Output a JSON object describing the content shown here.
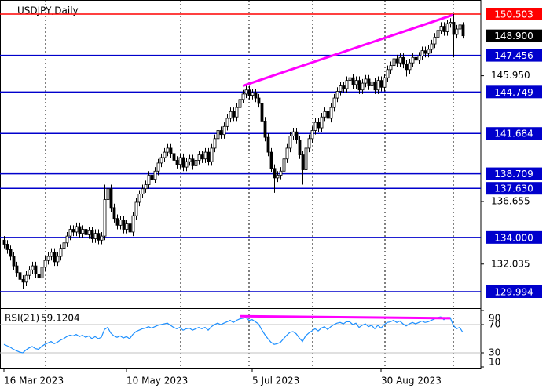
{
  "chart_data": {
    "type": "candlestick",
    "title": "USDJPY,Daily",
    "categories": [
      "16 Mar 2023",
      null,
      null,
      null,
      null,
      null,
      null,
      null,
      null,
      null,
      null,
      null,
      null,
      null,
      null,
      null,
      null,
      null,
      null,
      null,
      null,
      null,
      null,
      null,
      null,
      null,
      null,
      null,
      null,
      null,
      null,
      null,
      null,
      null,
      null,
      null,
      null,
      null,
      null,
      "10 May 2023",
      null,
      null,
      null,
      null,
      null,
      null,
      null,
      null,
      null,
      null,
      null,
      null,
      null,
      null,
      null,
      null,
      null,
      null,
      null,
      null,
      null,
      null,
      null,
      null,
      null,
      null,
      null,
      null,
      null,
      null,
      null,
      null,
      null,
      null,
      null,
      null,
      null,
      null,
      null,
      "5 Jul 2023",
      null,
      null,
      null,
      null,
      null,
      null,
      null,
      null,
      null,
      null,
      null,
      null,
      null,
      null,
      null,
      null,
      null,
      null,
      null,
      null,
      null,
      null,
      null,
      null,
      null,
      null,
      null,
      null,
      null,
      null,
      null,
      null,
      null,
      null,
      null,
      null,
      null,
      null,
      null,
      null,
      "30 Aug 2023",
      null,
      null,
      null,
      null,
      null,
      null,
      null,
      null,
      null,
      null,
      null,
      null,
      null,
      null,
      null,
      null,
      null,
      null,
      null,
      null,
      null,
      null,
      null,
      null,
      null,
      null
    ],
    "open": [
      133.8,
      133.5,
      133.1,
      132.6,
      131.9,
      131.4,
      130.9,
      130.7,
      131.2,
      131.6,
      131.9,
      131.3,
      131.0,
      131.8,
      132.3,
      132.6,
      132.9,
      132.2,
      132.6,
      133.2,
      133.6,
      134.1,
      134.6,
      134.4,
      134.8,
      134.3,
      134.6,
      134.2,
      134.5,
      133.9,
      134.3,
      133.8,
      134.1,
      136.8,
      137.6,
      136.2,
      135.4,
      134.9,
      135.3,
      134.6,
      135.0,
      134.4,
      135.6,
      136.6,
      137.2,
      137.6,
      137.9,
      138.6,
      138.3,
      138.9,
      139.5,
      139.9,
      140.3,
      140.6,
      140.2,
      139.7,
      139.4,
      139.9,
      139.2,
      139.6,
      139.8,
      139.3,
      139.7,
      140.1,
      139.8,
      140.3,
      139.6,
      140.6,
      141.3,
      141.9,
      141.6,
      142.2,
      142.8,
      143.3,
      142.9,
      143.6,
      144.2,
      144.6,
      144.9,
      144.5,
      144.7,
      144.3,
      143.9,
      142.6,
      141.4,
      140.3,
      139.1,
      138.4,
      138.6,
      138.9,
      139.8,
      140.6,
      141.5,
      141.8,
      141.2,
      140.1,
      139.0,
      140.6,
      141.3,
      141.9,
      142.5,
      142.1,
      142.9,
      143.3,
      142.8,
      143.6,
      144.3,
      144.8,
      145.2,
      145.0,
      145.6,
      145.8,
      145.3,
      145.6,
      144.9,
      145.4,
      145.7,
      145.2,
      145.5,
      144.9,
      145.6,
      145.1,
      145.8,
      146.4,
      146.7,
      147.2,
      146.9,
      147.3,
      146.8,
      146.4,
      146.9,
      147.3,
      147.1,
      147.4,
      147.8,
      147.6,
      147.9,
      148.3,
      148.8,
      149.3,
      149.6,
      149.2,
      149.8,
      149.9,
      149.0,
      149.4,
      149.7
    ],
    "high": [
      134.1,
      133.8,
      133.4,
      132.9,
      132.2,
      131.7,
      131.2,
      131.5,
      131.9,
      132.2,
      132.2,
      131.6,
      132.1,
      132.6,
      132.9,
      133.2,
      133.2,
      132.9,
      133.5,
      133.9,
      134.4,
      134.9,
      134.9,
      135.1,
      135.1,
      134.9,
      134.9,
      134.8,
      134.8,
      134.6,
      134.6,
      134.4,
      137.9,
      137.9,
      137.9,
      136.5,
      135.7,
      135.6,
      135.6,
      135.3,
      135.3,
      135.9,
      136.9,
      137.5,
      137.9,
      138.2,
      138.9,
      138.9,
      139.2,
      139.8,
      140.2,
      140.6,
      140.9,
      140.9,
      140.5,
      140.0,
      140.2,
      140.2,
      139.9,
      140.1,
      140.1,
      140.0,
      140.4,
      140.4,
      140.6,
      140.6,
      140.9,
      141.6,
      142.2,
      142.2,
      142.5,
      143.1,
      143.6,
      143.6,
      143.9,
      144.5,
      144.9,
      145.2,
      145.2,
      145.0,
      145.0,
      144.6,
      144.2,
      142.9,
      141.7,
      140.6,
      139.4,
      138.9,
      139.2,
      140.1,
      140.9,
      141.8,
      142.1,
      142.1,
      141.5,
      140.4,
      140.9,
      141.6,
      142.2,
      142.8,
      142.8,
      143.2,
      143.6,
      143.6,
      143.9,
      144.6,
      145.1,
      145.5,
      145.5,
      145.9,
      146.1,
      146.1,
      145.9,
      145.9,
      145.7,
      146.0,
      146.0,
      145.8,
      145.8,
      145.9,
      145.9,
      146.1,
      146.7,
      147.0,
      147.5,
      147.5,
      147.6,
      147.6,
      147.1,
      147.2,
      147.6,
      147.6,
      147.7,
      148.1,
      148.1,
      148.2,
      148.6,
      149.1,
      149.6,
      149.9,
      149.9,
      150.1,
      150.2,
      150.5,
      149.7,
      149.9,
      149.9
    ],
    "low": [
      133.2,
      132.8,
      132.3,
      131.6,
      131.1,
      130.6,
      130.2,
      130.4,
      130.9,
      131.3,
      131.0,
      130.7,
      130.7,
      131.5,
      132.0,
      132.3,
      131.9,
      131.9,
      132.3,
      132.9,
      133.3,
      133.8,
      134.1,
      134.1,
      134.0,
      134.0,
      133.9,
      133.9,
      133.6,
      133.6,
      133.5,
      133.5,
      133.8,
      136.5,
      135.9,
      135.1,
      134.6,
      134.6,
      134.3,
      134.3,
      134.1,
      134.1,
      135.3,
      136.3,
      136.9,
      137.3,
      137.6,
      138.0,
      138.0,
      138.6,
      139.2,
      139.6,
      140.0,
      139.9,
      139.4,
      139.1,
      139.1,
      138.9,
      138.9,
      139.3,
      139.0,
      139.0,
      139.4,
      139.5,
      139.5,
      139.3,
      139.3,
      140.3,
      141.0,
      141.3,
      141.3,
      141.9,
      142.5,
      142.6,
      142.6,
      143.3,
      143.9,
      144.3,
      144.2,
      144.2,
      144.0,
      143.6,
      142.3,
      141.1,
      140.0,
      138.8,
      137.3,
      138.1,
      138.3,
      138.6,
      139.5,
      140.3,
      141.2,
      140.9,
      139.8,
      137.9,
      138.7,
      140.3,
      141.0,
      141.6,
      141.8,
      141.8,
      142.6,
      142.5,
      142.5,
      143.3,
      144.0,
      144.5,
      144.7,
      144.7,
      145.3,
      145.0,
      145.0,
      144.6,
      144.6,
      145.1,
      144.9,
      144.9,
      144.6,
      144.6,
      144.8,
      144.8,
      145.5,
      146.1,
      146.4,
      146.6,
      146.6,
      146.5,
      145.9,
      146.1,
      146.6,
      146.8,
      146.8,
      147.1,
      147.3,
      147.3,
      147.6,
      148.0,
      148.5,
      149.0,
      148.9,
      148.9,
      149.5,
      147.3,
      148.7,
      149.1,
      148.7
    ],
    "close": [
      133.5,
      133.1,
      132.6,
      131.9,
      131.4,
      130.9,
      130.7,
      131.2,
      131.6,
      131.9,
      131.3,
      131.0,
      131.8,
      132.3,
      132.6,
      132.9,
      132.2,
      132.6,
      133.2,
      133.6,
      134.1,
      134.6,
      134.4,
      134.8,
      134.3,
      134.6,
      134.2,
      134.5,
      133.9,
      134.3,
      133.8,
      134.1,
      136.8,
      137.6,
      136.2,
      135.4,
      134.9,
      135.3,
      134.6,
      135.0,
      134.4,
      135.6,
      136.6,
      137.2,
      137.6,
      137.9,
      138.6,
      138.3,
      138.9,
      139.5,
      139.9,
      140.3,
      140.6,
      140.2,
      139.7,
      139.4,
      139.9,
      139.2,
      139.6,
      139.8,
      139.3,
      139.7,
      140.1,
      139.8,
      140.3,
      139.6,
      140.6,
      141.3,
      141.9,
      141.6,
      142.2,
      142.8,
      143.3,
      142.9,
      143.6,
      144.2,
      144.6,
      144.9,
      144.5,
      144.7,
      144.3,
      143.9,
      142.6,
      141.4,
      140.3,
      139.1,
      138.4,
      138.6,
      138.9,
      139.8,
      140.6,
      141.5,
      141.8,
      141.2,
      140.1,
      139.0,
      140.6,
      141.3,
      141.9,
      142.5,
      142.1,
      142.9,
      143.3,
      142.8,
      143.6,
      144.3,
      144.8,
      145.2,
      145.0,
      145.6,
      145.8,
      145.3,
      145.6,
      144.9,
      145.4,
      145.7,
      145.2,
      145.5,
      144.9,
      145.6,
      145.1,
      145.8,
      146.4,
      146.7,
      147.2,
      146.9,
      147.3,
      146.8,
      146.4,
      146.9,
      147.3,
      147.1,
      147.4,
      147.8,
      147.6,
      147.9,
      148.3,
      148.8,
      149.3,
      149.6,
      149.2,
      149.8,
      149.9,
      149.0,
      149.4,
      149.7,
      148.9
    ],
    "ylim": [
      128.835,
      151.546
    ],
    "yticks": [
      {
        "value": 145.95,
        "label": "145.950"
      },
      136.655,
      132.035
    ],
    "levels": [
      {
        "value": 150.503,
        "color": "#ff0000"
      },
      {
        "value": 147.456,
        "color": "#0000cc"
      },
      {
        "value": 144.749,
        "color": "#0000cc"
      },
      {
        "value": 141.684,
        "color": "#0000cc"
      },
      {
        "value": 138.709,
        "color": "#0000cc"
      },
      {
        "value": 137.63,
        "label": "137.630",
        "color": "#0000cc"
      },
      {
        "value": 134,
        "label": "134.000",
        "color": "#0000cc"
      },
      {
        "value": 129.994,
        "color": "#0000cc"
      }
    ],
    "last_price": {
      "value": 148.9,
      "label": "148.900"
    },
    "trendline": {
      "x": [
        76,
        143
      ],
      "y": [
        145.2,
        150.45
      ],
      "color": "#ff00ff"
    },
    "rsi": {
      "title": "RSI(21)",
      "color": "#1e90ff",
      "ylim": [
        10,
        90
      ],
      "yticks": [
        90,
        70,
        30,
        10
      ],
      "levels": [
        70,
        30
      ],
      "values": [
        42,
        40,
        38,
        35,
        33,
        31,
        30,
        34,
        37,
        39,
        36,
        35,
        39,
        42,
        44,
        46,
        43,
        45,
        48,
        50,
        53,
        55,
        54,
        56,
        53,
        55,
        52,
        54,
        50,
        53,
        50,
        52,
        63,
        66,
        58,
        54,
        52,
        54,
        51,
        53,
        50,
        56,
        60,
        62,
        64,
        65,
        67,
        65,
        67,
        69,
        70,
        71,
        72,
        69,
        66,
        64,
        66,
        62,
        64,
        65,
        62,
        64,
        66,
        64,
        66,
        62,
        67,
        70,
        72,
        70,
        72,
        74,
        76,
        73,
        76,
        78,
        79,
        80,
        76,
        77,
        74,
        71,
        63,
        56,
        50,
        45,
        42,
        43,
        45,
        50,
        55,
        59,
        60,
        57,
        51,
        46,
        54,
        58,
        61,
        64,
        61,
        65,
        67,
        63,
        67,
        70,
        72,
        73,
        71,
        74,
        74,
        70,
        72,
        66,
        69,
        71,
        67,
        69,
        64,
        69,
        65,
        70,
        73,
        74,
        76,
        73,
        75,
        71,
        68,
        71,
        73,
        71,
        73,
        75,
        73,
        74,
        76,
        78,
        80,
        81,
        77,
        80,
        80,
        69,
        64,
        66,
        59.1204
      ],
      "trendline": {
        "x": [
          75,
          142
        ],
        "y": [
          82,
          79
        ],
        "color": "#ff00ff"
      }
    }
  }
}
